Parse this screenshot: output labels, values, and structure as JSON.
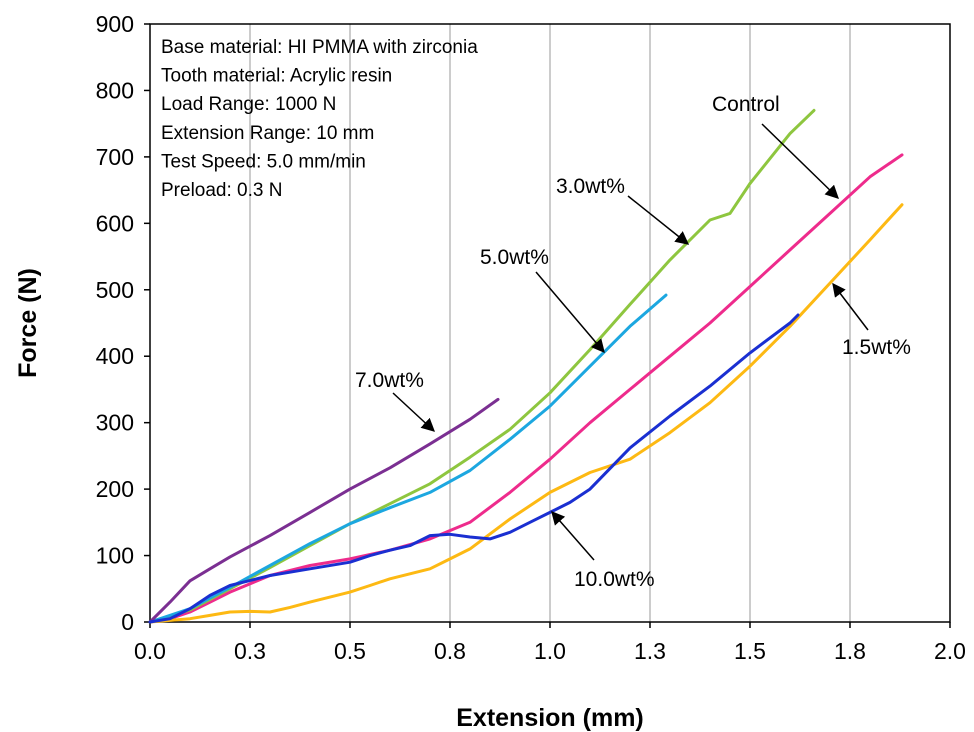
{
  "chart_data": {
    "type": "line",
    "xlabel": "Extension (mm)",
    "ylabel": "Force (N)",
    "xlim": [
      0,
      2.0
    ],
    "ylim": [
      0,
      900
    ],
    "x_ticks": [
      0,
      0.25,
      0.5,
      0.75,
      1.0,
      1.25,
      1.5,
      1.75,
      2.0
    ],
    "x_tick_labels": [
      "0.0",
      "0.3",
      "0.5",
      "0.8",
      "1.0",
      "1.3",
      "1.5",
      "1.8",
      "2.0"
    ],
    "y_ticks": [
      0,
      100,
      200,
      300,
      400,
      500,
      600,
      700,
      800,
      900
    ],
    "y_tick_labels": [
      "0",
      "100",
      "200",
      "300",
      "400",
      "500",
      "600",
      "700",
      "800",
      "900"
    ],
    "grid": "vertical",
    "info_lines": [
      "Base material: HI PMMA with zirconia",
      "Tooth material: Acrylic resin",
      "Load Range: 1000 N",
      "Extension Range: 10 mm",
      "Test Speed: 5.0 mm/min",
      "Preload: 0.3 N"
    ],
    "series": [
      {
        "label": "Control",
        "color": "#ee2b8c",
        "x": [
          0,
          0.05,
          0.1,
          0.15,
          0.2,
          0.3,
          0.4,
          0.5,
          0.6,
          0.7,
          0.8,
          0.9,
          1.0,
          1.1,
          1.2,
          1.3,
          1.4,
          1.5,
          1.6,
          1.7,
          1.8,
          1.88
        ],
        "y": [
          0,
          5,
          15,
          30,
          45,
          70,
          85,
          95,
          108,
          125,
          150,
          195,
          245,
          300,
          350,
          400,
          450,
          505,
          560,
          615,
          670,
          703
        ]
      },
      {
        "label": "1.5wt%",
        "color": "#fdb913",
        "x": [
          0,
          0.1,
          0.15,
          0.2,
          0.25,
          0.3,
          0.35,
          0.4,
          0.5,
          0.55,
          0.6,
          0.7,
          0.75,
          0.8,
          0.9,
          1.0,
          1.1,
          1.2,
          1.3,
          1.4,
          1.5,
          1.6,
          1.7,
          1.8,
          1.88
        ],
        "y": [
          0,
          5,
          10,
          15,
          16,
          15,
          22,
          30,
          45,
          55,
          65,
          80,
          95,
          110,
          155,
          195,
          225,
          245,
          285,
          330,
          385,
          445,
          510,
          575,
          628
        ]
      },
      {
        "label": "3.0wt%",
        "color": "#8ec63f",
        "x": [
          0,
          0.1,
          0.2,
          0.3,
          0.4,
          0.5,
          0.6,
          0.7,
          0.8,
          0.9,
          1.0,
          1.1,
          1.2,
          1.3,
          1.4,
          1.45,
          1.5,
          1.6,
          1.66
        ],
        "y": [
          0,
          18,
          50,
          82,
          115,
          148,
          178,
          208,
          248,
          290,
          345,
          410,
          478,
          545,
          605,
          615,
          660,
          735,
          770
        ]
      },
      {
        "label": "5.0wt%",
        "color": "#1ca7e0",
        "x": [
          0,
          0.1,
          0.2,
          0.3,
          0.4,
          0.5,
          0.6,
          0.7,
          0.8,
          0.9,
          1.0,
          1.1,
          1.2,
          1.29
        ],
        "y": [
          0,
          20,
          52,
          85,
          118,
          148,
          172,
          195,
          228,
          275,
          325,
          385,
          445,
          492
        ]
      },
      {
        "label": "7.0wt%",
        "color": "#7b2f92",
        "x": [
          0,
          0.05,
          0.1,
          0.15,
          0.2,
          0.3,
          0.4,
          0.5,
          0.6,
          0.7,
          0.8,
          0.87
        ],
        "y": [
          0,
          30,
          62,
          80,
          98,
          130,
          165,
          200,
          232,
          268,
          305,
          335
        ]
      },
      {
        "label": "10.0wt%",
        "color": "#1a2fd1",
        "x": [
          0,
          0.05,
          0.1,
          0.15,
          0.2,
          0.3,
          0.4,
          0.5,
          0.55,
          0.6,
          0.65,
          0.7,
          0.75,
          0.8,
          0.85,
          0.9,
          0.95,
          1.0,
          1.05,
          1.1,
          1.2,
          1.3,
          1.4,
          1.5,
          1.6,
          1.62
        ],
        "y": [
          0,
          5,
          20,
          40,
          55,
          70,
          80,
          90,
          100,
          108,
          115,
          130,
          132,
          128,
          125,
          135,
          150,
          165,
          180,
          200,
          262,
          310,
          355,
          405,
          450,
          462
        ]
      }
    ],
    "annotations": [
      {
        "text": "Control",
        "series": "Control"
      },
      {
        "text": "3.0wt%",
        "series": "3.0wt%"
      },
      {
        "text": "5.0wt%",
        "series": "5.0wt%"
      },
      {
        "text": "7.0wt%",
        "series": "7.0wt%"
      },
      {
        "text": "1.5wt%",
        "series": "1.5wt%"
      },
      {
        "text": "10.0wt%",
        "series": "10.0wt%"
      }
    ]
  }
}
